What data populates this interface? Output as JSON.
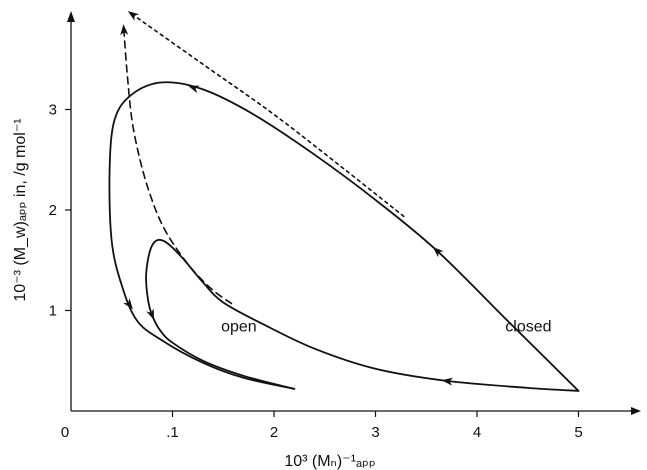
{
  "chart_data": {
    "type": "line",
    "title": "",
    "xlabel": "10³ (Mₙ)⁻¹ₐₚₚ",
    "ylabel": "10⁻³ (M_w)ₐₚₚ in, /g mol⁻¹",
    "xlim": [
      0,
      5.5
    ],
    "ylim": [
      0,
      3.9
    ],
    "x_ticks": [
      0,
      1,
      2,
      3,
      4,
      5
    ],
    "x_tick_labels": [
      "0",
      ".1",
      "2",
      "3",
      "4",
      "5"
    ],
    "y_ticks": [
      1,
      2,
      3
    ],
    "y_tick_labels": [
      "1",
      "2",
      "3"
    ],
    "grid": false,
    "legend": "none",
    "annotations": [
      {
        "text": "open",
        "x": 1.4,
        "y": 0.85
      },
      {
        "text": "closed",
        "x": 4.2,
        "y": 0.85
      }
    ],
    "series": [
      {
        "style": "solid",
        "points": [
          [
            5.0,
            0.2
          ],
          [
            4.5,
            0.23
          ],
          [
            3.7,
            0.3
          ],
          [
            3.0,
            0.42
          ],
          [
            2.4,
            0.62
          ],
          [
            1.9,
            0.86
          ],
          [
            1.5,
            1.08
          ],
          [
            1.3,
            1.28
          ],
          [
            1.1,
            1.52
          ],
          [
            0.95,
            1.67
          ],
          [
            0.85,
            1.7
          ],
          [
            0.78,
            1.6
          ],
          [
            0.74,
            1.35
          ],
          [
            0.76,
            1.1
          ],
          [
            0.8,
            0.95
          ],
          [
            0.88,
            0.8
          ],
          [
            1.0,
            0.68
          ],
          [
            1.3,
            0.5
          ],
          [
            1.7,
            0.35
          ],
          [
            2.2,
            0.22
          ]
        ],
        "arrows_at": [
          [
            3.7,
            0.3
          ],
          [
            0.8,
            0.95
          ]
        ]
      },
      {
        "style": "solid",
        "points": [
          [
            5.0,
            0.2
          ],
          [
            4.3,
            0.9
          ],
          [
            3.6,
            1.6
          ],
          [
            3.0,
            2.1
          ],
          [
            2.4,
            2.55
          ],
          [
            1.8,
            2.95
          ],
          [
            1.3,
            3.2
          ],
          [
            0.9,
            3.27
          ],
          [
            0.6,
            3.15
          ],
          [
            0.43,
            2.9
          ],
          [
            0.38,
            2.4
          ],
          [
            0.4,
            1.7
          ],
          [
            0.5,
            1.25
          ],
          [
            0.65,
            0.9
          ],
          [
            0.9,
            0.7
          ],
          [
            1.3,
            0.48
          ],
          [
            1.7,
            0.33
          ],
          [
            2.2,
            0.22
          ]
        ],
        "arrows_at": [
          [
            3.6,
            1.6
          ],
          [
            1.2,
            3.22
          ],
          [
            0.58,
            1.05
          ]
        ]
      },
      {
        "style": "dashed",
        "points": [
          [
            0.52,
            3.8
          ],
          [
            0.55,
            3.4
          ],
          [
            0.6,
            2.9
          ],
          [
            0.68,
            2.5
          ],
          [
            0.78,
            2.15
          ],
          [
            0.9,
            1.85
          ],
          [
            1.05,
            1.6
          ],
          [
            1.22,
            1.38
          ],
          [
            1.4,
            1.2
          ],
          [
            1.58,
            1.07
          ]
        ],
        "arrows_at": [
          [
            0.52,
            3.8
          ]
        ]
      },
      {
        "style": "dotted",
        "points": [
          [
            0.6,
            3.95
          ],
          [
            1.3,
            3.45
          ],
          [
            2.0,
            2.95
          ],
          [
            2.7,
            2.4
          ],
          [
            3.3,
            1.92
          ]
        ],
        "arrows_at": [
          [
            0.6,
            3.95
          ]
        ]
      }
    ]
  }
}
